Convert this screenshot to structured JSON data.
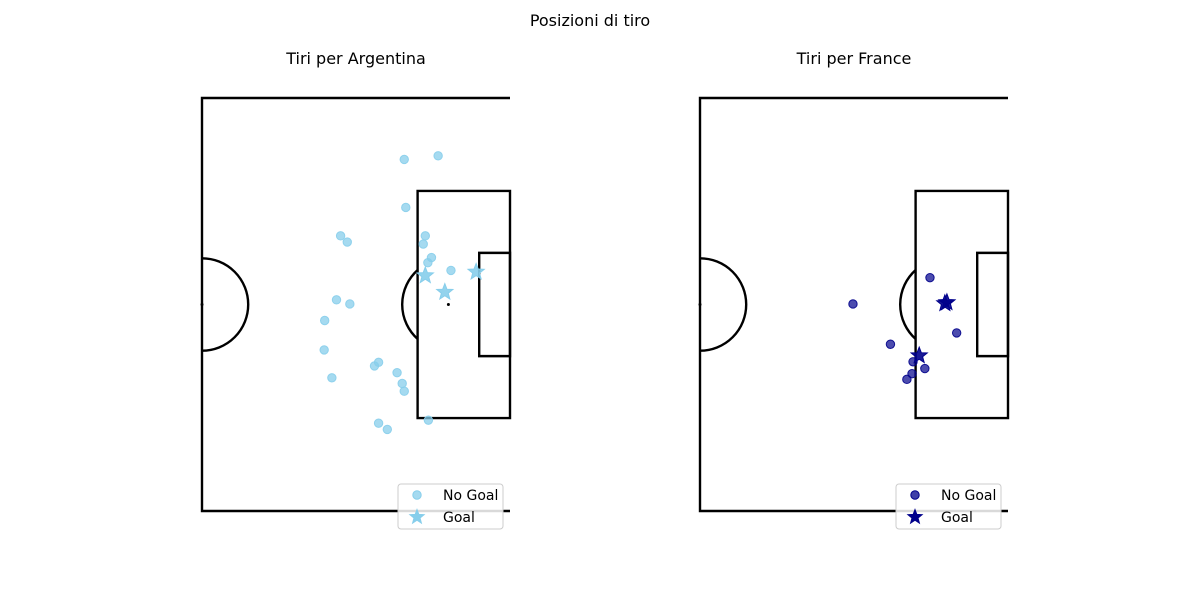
{
  "figure": {
    "suptitle": "Posizioni di tiro"
  },
  "chart_data": [
    {
      "type": "scatter",
      "title": "Tiri per Argentina",
      "xlabel": "",
      "ylabel": "",
      "xlim": [
        60,
        120
      ],
      "ylim": [
        0,
        80
      ],
      "grid": false,
      "legend_position": "bottom-right",
      "legend": [
        "No Goal",
        "Goal"
      ],
      "color": "#87ceeb",
      "series": [
        {
          "name": "No Goal",
          "marker": "circle",
          "points": [
            [
              96.1,
              15.8
            ],
            [
              94.4,
              17.0
            ],
            [
              104.1,
              17.6
            ],
            [
              99.4,
              23.2
            ],
            [
              99.0,
              24.7
            ],
            [
              98.0,
              26.8
            ],
            [
              94.4,
              28.8
            ],
            [
              93.6,
              28.1
            ],
            [
              86.2,
              40.9
            ],
            [
              108.5,
              46.6
            ],
            [
              104.7,
              49.1
            ],
            [
              104.0,
              48.1
            ],
            [
              103.1,
              51.7
            ],
            [
              88.3,
              52.1
            ],
            [
              87.0,
              53.3
            ],
            [
              99.7,
              58.8
            ],
            [
              106.0,
              68.8
            ],
            [
              99.4,
              68.1
            ],
            [
              83.8,
              31.2
            ],
            [
              83.9,
              36.9
            ],
            [
              88.8,
              40.1
            ],
            [
              85.3,
              25.8
            ],
            [
              103.5,
              53.3
            ]
          ]
        },
        {
          "name": "Goal",
          "marker": "star",
          "points": [
            [
              107.3,
              42.4
            ],
            [
              103.5,
              45.6
            ],
            [
              113.4,
              46.3
            ]
          ]
        }
      ]
    },
    {
      "type": "scatter",
      "title": "Tiri per France",
      "xlabel": "",
      "ylabel": "",
      "xlim": [
        60,
        120
      ],
      "ylim": [
        0,
        80
      ],
      "grid": false,
      "legend_position": "bottom-right",
      "legend": [
        "No Goal",
        "Goal"
      ],
      "color": "#00008b",
      "series": [
        {
          "name": "No Goal",
          "marker": "circle",
          "points": [
            [
              104.8,
              45.2
            ],
            [
              89.8,
              40.1
            ],
            [
              97.1,
              32.3
            ],
            [
              101.5,
              28.9
            ],
            [
              110.0,
              34.5
            ],
            [
              103.8,
              27.6
            ],
            [
              101.3,
              26.6
            ],
            [
              100.3,
              25.5
            ]
          ]
        },
        {
          "name": "Goal",
          "marker": "star",
          "points": [
            [
              108.1,
              40.4
            ],
            [
              107.7,
              40.2
            ],
            [
              102.7,
              30.1
            ]
          ]
        }
      ]
    }
  ]
}
